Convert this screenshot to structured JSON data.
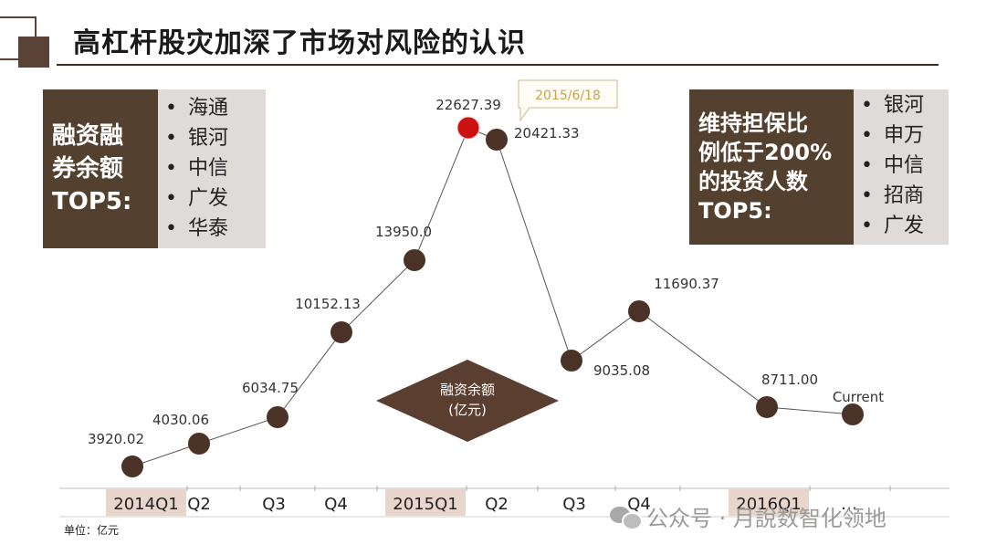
{
  "title": "高杠杆股灾加深了市场对风险的认识",
  "left_panel": {
    "heading": "融资融\n券余额\nTOP5:",
    "items": [
      "海通",
      "银河",
      "中信",
      "广发",
      "华泰"
    ]
  },
  "right_panel": {
    "heading": "维持担保比\n例低于200%\n的投资人数\nTOP5:",
    "items": [
      "银河",
      "申万",
      "中信",
      "招商",
      "广发"
    ]
  },
  "unit_note": "单位：亿元",
  "watermark": "公众号 · 月說数智化领地",
  "chart_data": {
    "type": "line",
    "series_label": "融资余额\n(亿元)",
    "x": [
      "2014Q1",
      "Q2",
      "Q3",
      "Q4",
      "2015Q1",
      "2015/6/18",
      "Q2",
      "Q3",
      "Q4",
      "2016Q1",
      "Current"
    ],
    "tick_labels": [
      "2014Q1",
      "Q2",
      "Q3",
      "Q4",
      "2015Q1",
      "Q2",
      "Q3",
      "Q4",
      "2016Q1",
      "…"
    ],
    "highlighted_ticks": [
      "2014Q1",
      "2015Q1",
      "2016Q1"
    ],
    "points": [
      {
        "x": "2014Q1",
        "value": 3920.02,
        "label": "3920.02"
      },
      {
        "x": "Q2",
        "value": 4030.06,
        "label": "4030.06"
      },
      {
        "x": "Q3",
        "value": 6034.75,
        "label": "6034.75"
      },
      {
        "x": "Q4",
        "value": 10152.13,
        "label": "10152.13"
      },
      {
        "x": "2015Q1",
        "value": 13950.0,
        "label": "13950.0"
      },
      {
        "x": "2015/6/18",
        "value": 22627.39,
        "label": "22627.39",
        "highlight": true
      },
      {
        "x": "Q2",
        "value": 20421.33,
        "label": "20421.33"
      },
      {
        "x": "Q3",
        "value": 9035.08,
        "label": "9035.08"
      },
      {
        "x": "Q4",
        "value": 11690.37,
        "label": "11690.37"
      },
      {
        "x": "2016Q1",
        "value": 8711.0,
        "label": "8711.00"
      },
      {
        "x": "Current",
        "value": 8600,
        "label": "Current"
      }
    ],
    "callout": "2015/6/18",
    "colors": {
      "point": "#4b3226",
      "highlight": "#cc1111",
      "line": "#555555",
      "axis_highlight": "#e8d6cc",
      "diamond": "#5a3e30"
    }
  }
}
